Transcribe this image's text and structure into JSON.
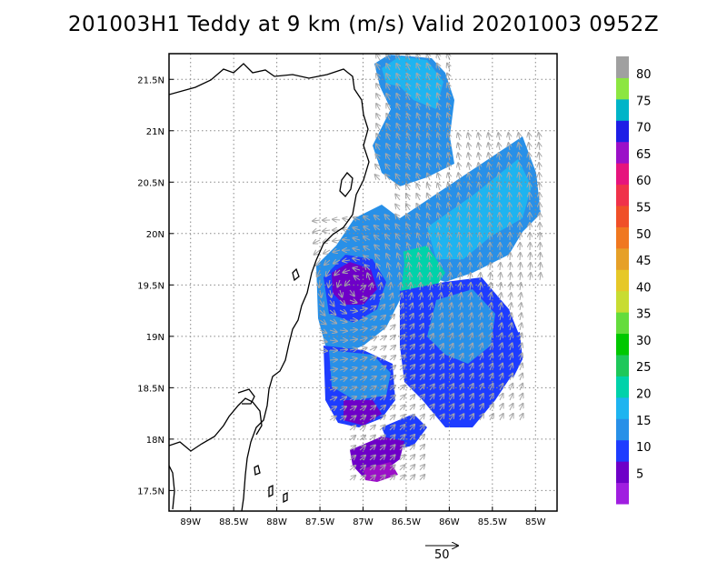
{
  "title": "201003H1 Teddy at 9 km (m/s) Valid 20201003 0952Z",
  "map": {
    "lon_range": [
      -89.25,
      -84.75
    ],
    "lat_range": [
      17.3,
      21.75
    ],
    "lon_ticks": [
      {
        "lon": -89.0,
        "label": "89W"
      },
      {
        "lon": -88.5,
        "label": "88.5W"
      },
      {
        "lon": -88.0,
        "label": "88W"
      },
      {
        "lon": -87.5,
        "label": "87.5W"
      },
      {
        "lon": -87.0,
        "label": "87W"
      },
      {
        "lon": -86.5,
        "label": "86.5W"
      },
      {
        "lon": -86.0,
        "label": "86W"
      },
      {
        "lon": -85.5,
        "label": "85.5W"
      },
      {
        "lon": -85.0,
        "label": "85W"
      }
    ],
    "lat_ticks": [
      {
        "lat": 17.5,
        "label": "17.5N"
      },
      {
        "lat": 18.0,
        "label": "18N"
      },
      {
        "lat": 18.5,
        "label": "18.5N"
      },
      {
        "lat": 19.0,
        "label": "19N"
      },
      {
        "lat": 19.5,
        "label": "19.5N"
      },
      {
        "lat": 20.0,
        "label": "20N"
      },
      {
        "lat": 20.5,
        "label": "20.5N"
      },
      {
        "lat": 21.0,
        "label": "21N"
      },
      {
        "lat": 21.5,
        "label": "21.5N"
      }
    ],
    "gridlines": "dotted",
    "vector_color": "#a8a8a8",
    "coastline_color": "#000000"
  },
  "colorbar": {
    "labels": [
      "5",
      "10",
      "15",
      "20",
      "25",
      "30",
      "35",
      "40",
      "45",
      "50",
      "55",
      "60",
      "65",
      "70",
      "75",
      "80"
    ],
    "colors": [
      "#a01ee0",
      "#6e00c8",
      "#1e3cff",
      "#2890e8",
      "#1eb4f0",
      "#00d2aa",
      "#1ec85a",
      "#00c800",
      "#64dc3c",
      "#c8dc32",
      "#e6c828",
      "#e6a028",
      "#f07820",
      "#f05028",
      "#f0324a",
      "#e6147d",
      "#9b10c8",
      "#1e1ee6",
      "#00b4c8",
      "#8ce641",
      "#a0a0a0"
    ]
  },
  "reference_vector": {
    "label": "50"
  }
}
